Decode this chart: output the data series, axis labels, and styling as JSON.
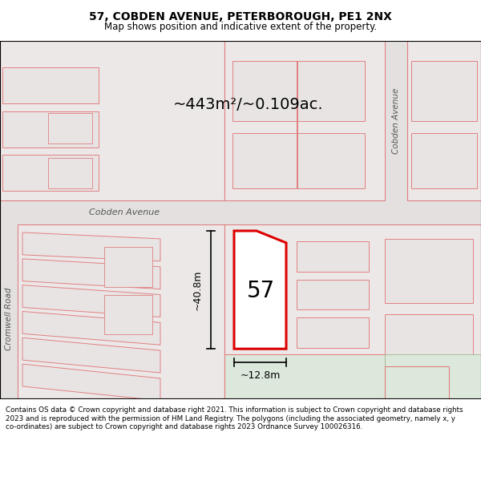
{
  "title": "57, COBDEN AVENUE, PETERBOROUGH, PE1 2NX",
  "subtitle": "Map shows position and indicative extent of the property.",
  "footer": "Contains OS data © Crown copyright and database right 2021. This information is subject to Crown copyright and database rights 2023 and is reproduced with the permission of HM Land Registry. The polygons (including the associated geometry, namely x, y co-ordinates) are subject to Crown copyright and database rights 2023 Ordnance Survey 100026316.",
  "area_label": "~443m²/~0.109ac.",
  "width_label": "~12.8m",
  "height_label": "~40.8m",
  "property_number": "57",
  "bg_color": "#f7f4f4",
  "road_color": "#e8e4e4",
  "parcel_fill": "#ede8e8",
  "parcel_edge": "#e08080",
  "parcel_fill2": "#e8e4e4",
  "green_fill": "#dce8dc",
  "plot_outline_color": "#dd0000",
  "plot_fill_color": "#ffffff",
  "cobden_avenue_label": "Cobden Avenue",
  "cromwell_road_label": "Cromwell Road",
  "cobden_avenue_label2": "Cobden Avenue"
}
